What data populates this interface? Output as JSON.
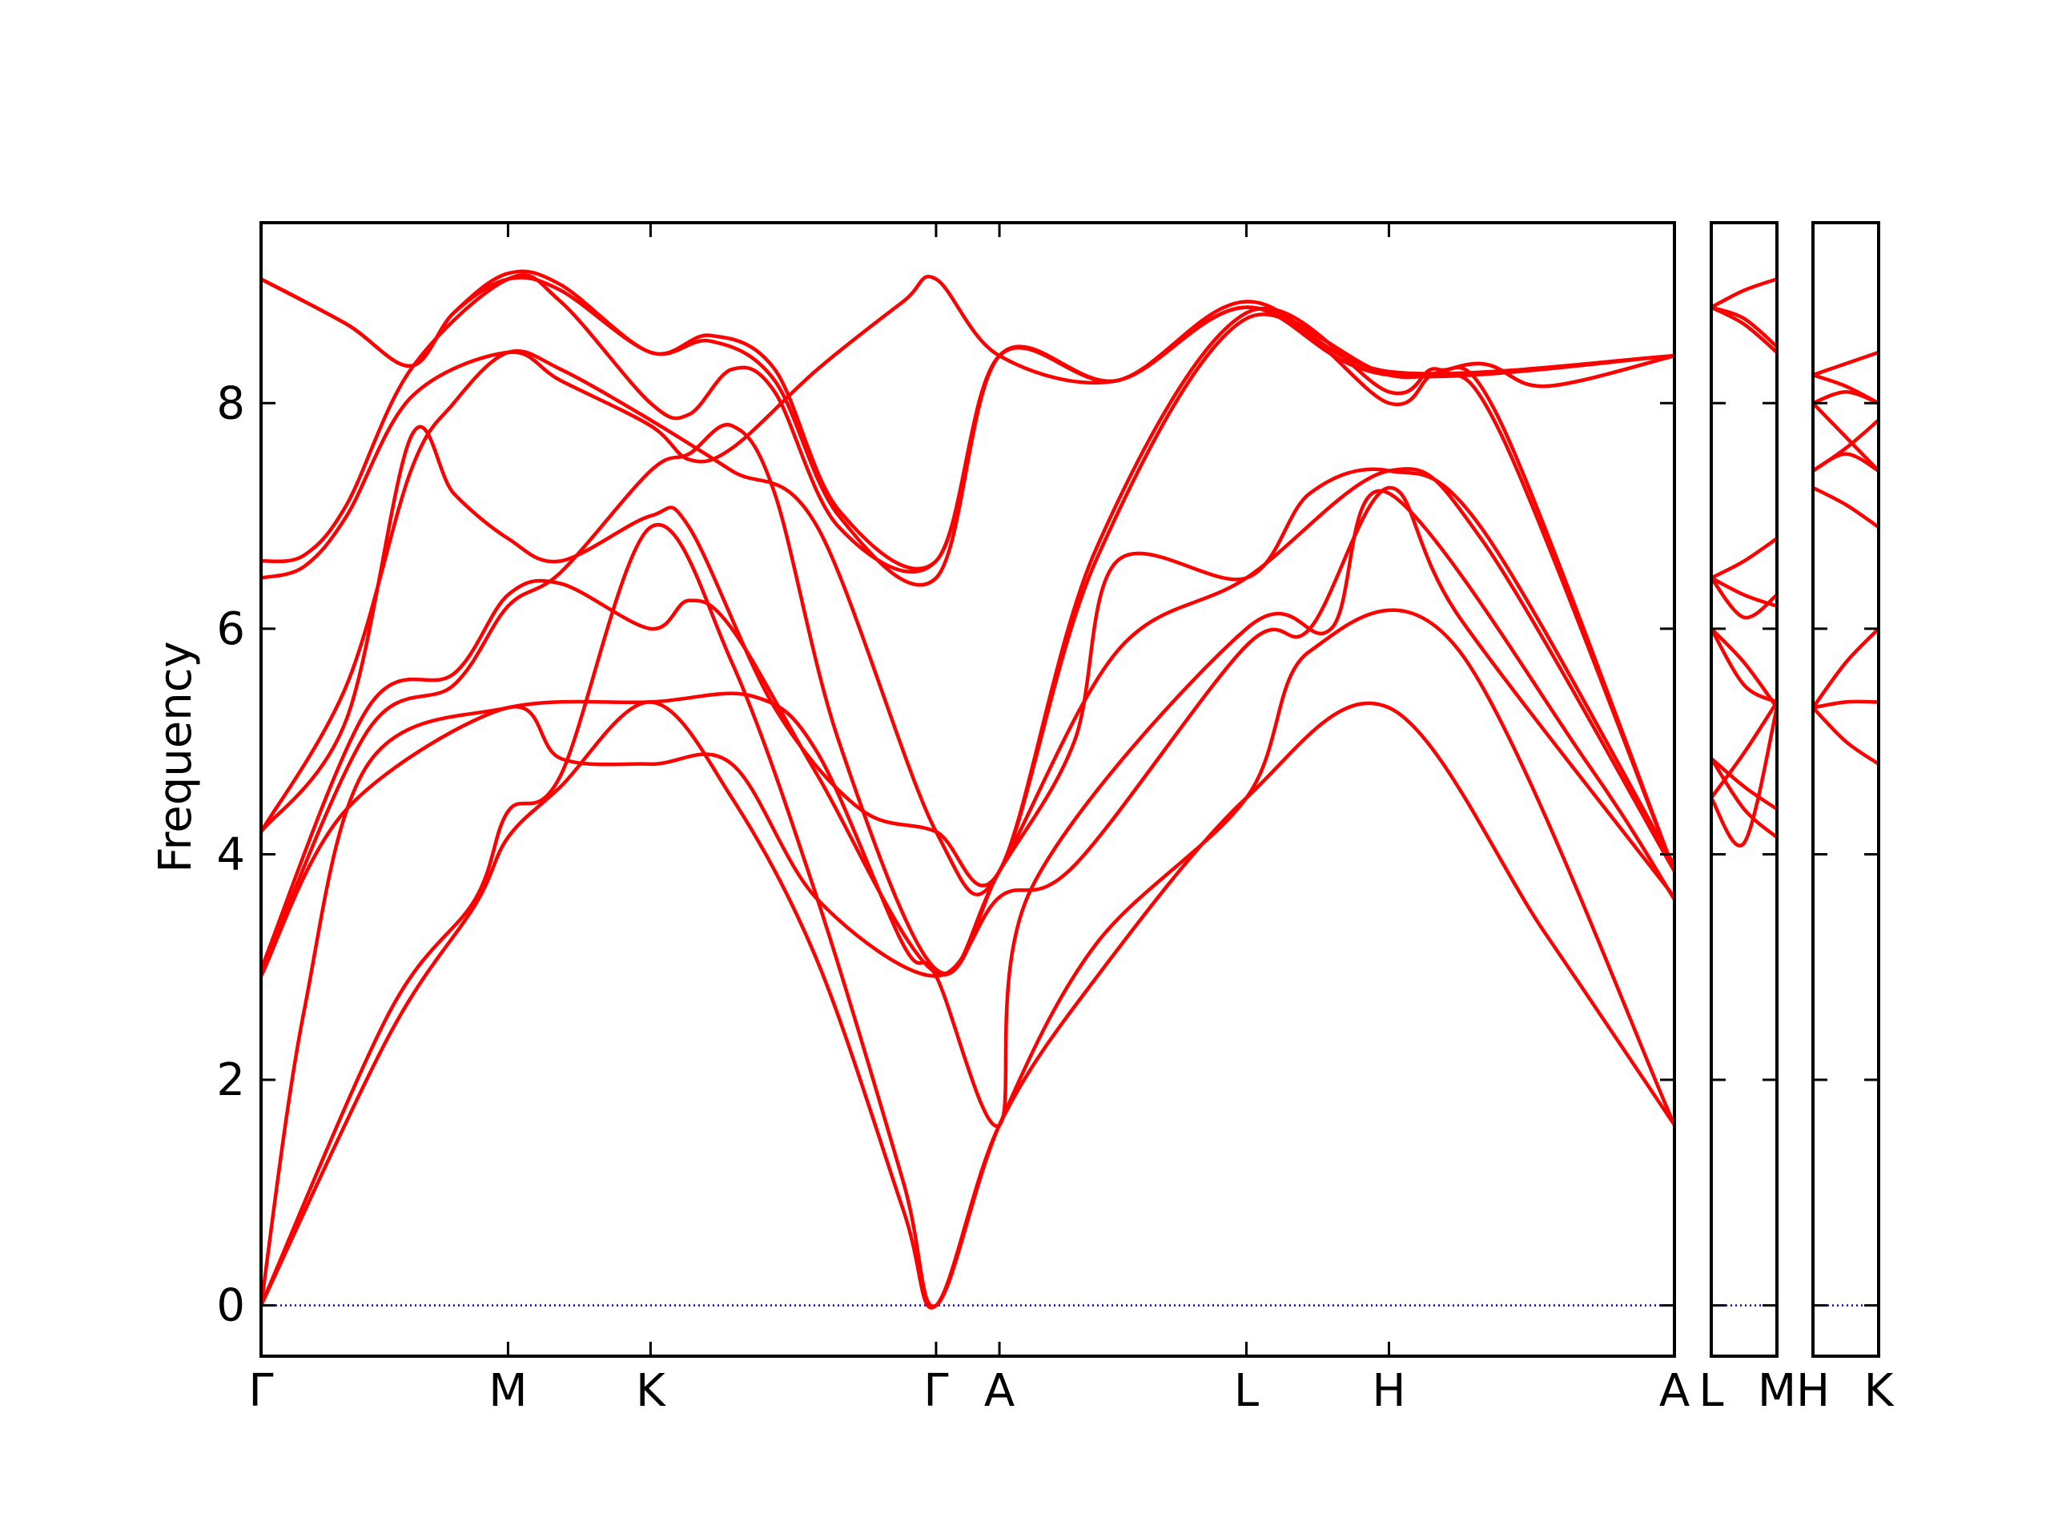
{
  "chart_data": {
    "type": "line",
    "title": "",
    "ylabel": "Frequency",
    "xlabel": "",
    "ylim": [
      -0.45,
      9.6
    ],
    "yticks": [
      0,
      2,
      4,
      6,
      8
    ],
    "ytick_labels": [
      "0",
      "2",
      "4",
      "6",
      "8"
    ],
    "grid": false,
    "colors": {
      "bands": "#ff0000",
      "zero_line": "#0000cc",
      "frame": "#000000"
    },
    "panels": [
      {
        "x_points": [
          "Γ",
          "M",
          "K",
          "Γ",
          "A",
          "L",
          "H",
          "A"
        ],
        "x_pos": [
          0,
          0.577,
          0.91,
          1.577,
          1.725,
          2.302,
          2.635,
          3.302
        ],
        "bands": [
          [
            [
              0,
              0
            ],
            [
              0.3,
              2.4
            ],
            [
              0.5,
              3.55
            ],
            [
              0.577,
              4.15
            ],
            [
              0.7,
              4.6
            ],
            [
              0.91,
              5.35
            ],
            [
              1.1,
              4.5
            ],
            [
              1.3,
              3.05
            ],
            [
              1.5,
              0.85
            ],
            [
              1.577,
              0
            ],
            [
              1.725,
              1.6
            ],
            [
              1.95,
              2.9
            ],
            [
              2.302,
              4.5
            ],
            [
              2.635,
              5.3
            ],
            [
              3.0,
              3.3
            ],
            [
              3.302,
              1.6
            ]
          ],
          [
            [
              0,
              0
            ],
            [
              0.3,
              2.6
            ],
            [
              0.5,
              3.6
            ],
            [
              0.577,
              4.38
            ],
            [
              0.7,
              4.7
            ],
            [
              0.91,
              6.9
            ],
            [
              1.1,
              5.7
            ],
            [
              1.3,
              3.6
            ],
            [
              1.5,
              1.1
            ],
            [
              1.577,
              0
            ],
            [
              1.725,
              1.6
            ],
            [
              1.95,
              3.2
            ],
            [
              2.302,
              4.5
            ],
            [
              2.45,
              5.8
            ],
            [
              2.8,
              5.8
            ],
            [
              3.302,
              1.6
            ]
          ],
          [
            [
              0,
              0
            ],
            [
              0.1,
              2.6
            ],
            [
              0.25,
              4.8
            ],
            [
              0.577,
              5.3
            ],
            [
              0.91,
              5.35
            ],
            [
              1.15,
              5.4
            ],
            [
              1.3,
              4.9
            ],
            [
              1.5,
              3.2
            ],
            [
              1.577,
              2.92
            ],
            [
              1.725,
              1.6
            ],
            [
              1.8,
              3.7
            ],
            [
              2.302,
              6.0
            ],
            [
              2.5,
              6.0
            ],
            [
              2.635,
              7.2
            ],
            [
              3.1,
              4.8
            ],
            [
              3.302,
              3.6
            ]
          ],
          [
            [
              0,
              2.92
            ],
            [
              0.2,
              4.4
            ],
            [
              0.577,
              5.3
            ],
            [
              0.7,
              4.85
            ],
            [
              0.91,
              4.8
            ],
            [
              1.1,
              4.8
            ],
            [
              1.3,
              3.6
            ],
            [
              1.577,
              2.92
            ],
            [
              1.725,
              3.62
            ],
            [
              1.9,
              3.9
            ],
            [
              2.302,
              5.85
            ],
            [
              2.45,
              6.0
            ],
            [
              2.635,
              7.25
            ],
            [
              2.8,
              6.1
            ],
            [
              3.302,
              3.62
            ]
          ],
          [
            [
              0,
              2.95
            ],
            [
              0.25,
              5.1
            ],
            [
              0.45,
              5.5
            ],
            [
              0.577,
              6.2
            ],
            [
              0.7,
              6.5
            ],
            [
              0.91,
              7.4
            ],
            [
              1.0,
              7.55
            ],
            [
              1.1,
              7.8
            ],
            [
              1.2,
              7.2
            ],
            [
              1.35,
              5.0
            ],
            [
              1.577,
              2.98
            ],
            [
              1.725,
              3.85
            ],
            [
              2.0,
              5.8
            ],
            [
              2.302,
              6.45
            ],
            [
              2.635,
              7.4
            ],
            [
              2.85,
              6.8
            ],
            [
              3.302,
              3.85
            ]
          ],
          [
            [
              0,
              2.98
            ],
            [
              0.25,
              5.3
            ],
            [
              0.45,
              5.6
            ],
            [
              0.577,
              6.3
            ],
            [
              0.7,
              6.4
            ],
            [
              0.91,
              6.0
            ],
            [
              1.0,
              6.25
            ],
            [
              1.1,
              6.0
            ],
            [
              1.3,
              4.7
            ],
            [
              1.577,
              2.95
            ],
            [
              1.725,
              3.85
            ],
            [
              1.9,
              5.0
            ],
            [
              2.0,
              6.6
            ],
            [
              2.302,
              6.45
            ],
            [
              2.45,
              7.2
            ],
            [
              2.635,
              7.4
            ],
            [
              2.85,
              6.9
            ],
            [
              3.302,
              3.9
            ]
          ],
          [
            [
              0,
              4.2
            ],
            [
              0.2,
              5.2
            ],
            [
              0.35,
              7.7
            ],
            [
              0.45,
              7.2
            ],
            [
              0.577,
              6.8
            ],
            [
              0.7,
              6.6
            ],
            [
              0.91,
              7.0
            ],
            [
              1.0,
              6.9
            ],
            [
              1.2,
              5.3
            ],
            [
              1.4,
              4.4
            ],
            [
              1.577,
              4.2
            ],
            [
              1.725,
              3.85
            ],
            [
              1.95,
              6.6
            ],
            [
              2.302,
              8.75
            ],
            [
              2.635,
              8.0
            ],
            [
              2.75,
              8.25
            ],
            [
              2.9,
              7.7
            ],
            [
              3.302,
              3.85
            ]
          ],
          [
            [
              0,
              4.2
            ],
            [
              0.2,
              5.5
            ],
            [
              0.35,
              7.4
            ],
            [
              0.45,
              8.0
            ],
            [
              0.577,
              8.45
            ],
            [
              0.7,
              8.3
            ],
            [
              0.91,
              7.85
            ],
            [
              1.1,
              7.4
            ],
            [
              1.3,
              6.9
            ],
            [
              1.577,
              4.2
            ],
            [
              1.725,
              3.85
            ],
            [
              1.95,
              6.7
            ],
            [
              2.302,
              8.8
            ],
            [
              2.635,
              8.1
            ],
            [
              2.75,
              8.3
            ],
            [
              2.9,
              7.8
            ],
            [
              3.302,
              3.85
            ]
          ],
          [
            [
              0,
              6.45
            ],
            [
              0.1,
              6.55
            ],
            [
              0.2,
              7.0
            ],
            [
              0.35,
              8.05
            ],
            [
              0.577,
              8.45
            ],
            [
              0.7,
              8.2
            ],
            [
              0.91,
              7.8
            ],
            [
              1.0,
              7.5
            ],
            [
              1.1,
              7.6
            ],
            [
              1.3,
              8.3
            ],
            [
              1.5,
              8.9
            ],
            [
              1.577,
              9.1
            ],
            [
              1.725,
              8.42
            ],
            [
              2.0,
              8.2
            ],
            [
              2.302,
              8.85
            ],
            [
              2.635,
              8.25
            ],
            [
              2.85,
              8.35
            ],
            [
              3.0,
              8.15
            ],
            [
              3.302,
              8.42
            ]
          ],
          [
            [
              0,
              6.6
            ],
            [
              0.1,
              6.65
            ],
            [
              0.2,
              7.1
            ],
            [
              0.35,
              8.3
            ],
            [
              0.577,
              9.1
            ],
            [
              0.7,
              8.9
            ],
            [
              0.91,
              8.0
            ],
            [
              1.0,
              7.9
            ],
            [
              1.1,
              8.3
            ],
            [
              1.2,
              8.1
            ],
            [
              1.35,
              6.9
            ],
            [
              1.577,
              6.6
            ],
            [
              1.725,
              8.42
            ],
            [
              2.0,
              8.2
            ],
            [
              2.302,
              8.85
            ],
            [
              2.635,
              8.25
            ],
            [
              2.85,
              8.35
            ],
            [
              3.0,
              8.15
            ],
            [
              3.302,
              8.42
            ]
          ],
          [
            [
              0,
              9.1
            ],
            [
              0.2,
              8.7
            ],
            [
              0.35,
              8.33
            ],
            [
              0.45,
              8.8
            ],
            [
              0.577,
              9.1
            ],
            [
              0.7,
              9.0
            ],
            [
              0.91,
              8.45
            ],
            [
              1.05,
              8.55
            ],
            [
              1.2,
              8.2
            ],
            [
              1.35,
              7.0
            ],
            [
              1.577,
              6.45
            ],
            [
              1.725,
              8.42
            ],
            [
              2.0,
              8.2
            ],
            [
              2.302,
              8.85
            ],
            [
              2.635,
              8.25
            ],
            [
              3.302,
              8.42
            ]
          ],
          [
            [
              0,
              9.1
            ],
            [
              0.2,
              8.7
            ],
            [
              0.35,
              8.33
            ],
            [
              0.45,
              8.8
            ],
            [
              0.577,
              9.15
            ],
            [
              0.7,
              9.05
            ],
            [
              0.91,
              8.45
            ],
            [
              1.05,
              8.6
            ],
            [
              1.2,
              8.3
            ],
            [
              1.35,
              7.05
            ],
            [
              1.577,
              6.6
            ],
            [
              1.725,
              8.42
            ],
            [
              2.0,
              8.2
            ],
            [
              2.302,
              8.9
            ],
            [
              2.635,
              8.28
            ],
            [
              3.302,
              8.42
            ]
          ]
        ]
      },
      {
        "x_points": [
          "L",
          "M"
        ],
        "x_pos": [
          0,
          1
        ],
        "bands": [
          [
            [
              0,
              4.5
            ],
            [
              0.5,
              4.1
            ],
            [
              1,
              5.3
            ]
          ],
          [
            [
              0,
              4.5
            ],
            [
              0.5,
              4.9
            ],
            [
              1,
              5.35
            ]
          ],
          [
            [
              0,
              4.85
            ],
            [
              0.5,
              4.4
            ],
            [
              1,
              4.15
            ]
          ],
          [
            [
              0,
              4.85
            ],
            [
              0.5,
              4.6
            ],
            [
              1,
              4.4
            ]
          ],
          [
            [
              0,
              6.0
            ],
            [
              0.5,
              5.7
            ],
            [
              1,
              5.3
            ]
          ],
          [
            [
              0,
              6.0
            ],
            [
              0.5,
              5.5
            ],
            [
              1,
              5.35
            ]
          ],
          [
            [
              0,
              6.45
            ],
            [
              0.5,
              6.3
            ],
            [
              1,
              6.2
            ]
          ],
          [
            [
              0,
              6.45
            ],
            [
              0.5,
              6.6
            ],
            [
              1,
              6.8
            ]
          ],
          [
            [
              0,
              6.45
            ],
            [
              0.5,
              6.1
            ],
            [
              1,
              6.3
            ]
          ],
          [
            [
              0,
              8.85
            ],
            [
              0.5,
              8.7
            ],
            [
              1,
              8.45
            ]
          ],
          [
            [
              0,
              8.85
            ],
            [
              0.5,
              8.75
            ],
            [
              1,
              8.5
            ]
          ],
          [
            [
              0,
              8.85
            ],
            [
              0.5,
              9.0
            ],
            [
              1,
              9.1
            ]
          ]
        ]
      },
      {
        "x_points": [
          "H",
          "K"
        ],
        "x_pos": [
          0,
          1
        ],
        "bands": [
          [
            [
              0,
              5.3
            ],
            [
              0.5,
              5.0
            ],
            [
              1,
              4.8
            ]
          ],
          [
            [
              0,
              5.3
            ],
            [
              0.5,
              5.35
            ],
            [
              1,
              5.35
            ]
          ],
          [
            [
              0,
              5.3
            ],
            [
              0.5,
              5.7
            ],
            [
              1,
              6.0
            ]
          ],
          [
            [
              0,
              7.25
            ],
            [
              0.5,
              7.1
            ],
            [
              1,
              6.9
            ]
          ],
          [
            [
              0,
              7.4
            ],
            [
              0.5,
              7.6
            ],
            [
              1,
              7.85
            ]
          ],
          [
            [
              0,
              7.4
            ],
            [
              0.5,
              7.55
            ],
            [
              1,
              7.4
            ]
          ],
          [
            [
              0,
              8.0
            ],
            [
              0.5,
              7.7
            ],
            [
              1,
              7.4
            ]
          ],
          [
            [
              0,
              8.25
            ],
            [
              0.5,
              8.35
            ],
            [
              1,
              8.45
            ]
          ],
          [
            [
              0,
              8.25
            ],
            [
              0.5,
              8.15
            ],
            [
              1,
              8.0
            ]
          ],
          [
            [
              0,
              8.0
            ],
            [
              0.5,
              8.1
            ],
            [
              1,
              8.0
            ]
          ]
        ]
      }
    ]
  }
}
